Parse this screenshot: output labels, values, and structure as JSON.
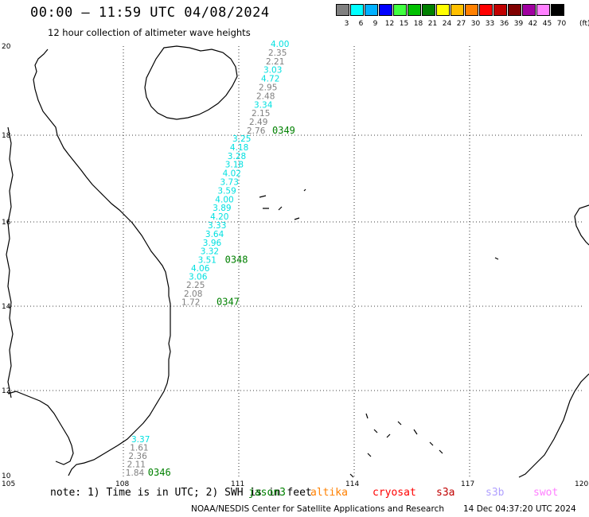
{
  "header": {
    "title": "00:00 – 11:59 UTC 04/08/2024",
    "subtitle": "12 hour collection of altimeter wave heights"
  },
  "legend": {
    "colors": [
      "#808080",
      "#00ffff",
      "#00b0ff",
      "#0000ff",
      "#40ff40",
      "#00c000",
      "#008000",
      "#ffff00",
      "#ffc000",
      "#ff8000",
      "#ff0000",
      "#c00000",
      "#800000",
      "#a000a0",
      "#ff80ff",
      "#000000"
    ],
    "labels": [
      "3",
      "6",
      "9",
      "12",
      "15",
      "18",
      "21",
      "24",
      "27",
      "30",
      "33",
      "36",
      "39",
      "42",
      "45",
      "70"
    ],
    "unit": "(ft)"
  },
  "axes": {
    "lat_labels": [
      "20",
      "18",
      "16",
      "14",
      "12",
      "10"
    ],
    "lon_labels": [
      "105",
      "108",
      "111",
      "114",
      "117",
      "120"
    ]
  },
  "tracks": [
    {
      "pass_label": "0349",
      "points": [
        {
          "v": "4.00",
          "c": "#00e0e0"
        },
        {
          "v": "2.35",
          "c": "#808080"
        },
        {
          "v": "2.21",
          "c": "#808080"
        },
        {
          "v": "3.03",
          "c": "#00e0e0"
        },
        {
          "v": "4.72",
          "c": "#00e0e0"
        },
        {
          "v": "2.95",
          "c": "#808080"
        },
        {
          "v": "2.48",
          "c": "#808080"
        },
        {
          "v": "3.34",
          "c": "#00e0e0"
        },
        {
          "v": "2.15",
          "c": "#808080"
        },
        {
          "v": "2.49",
          "c": "#808080"
        },
        {
          "v": "2.76",
          "c": "#808080"
        }
      ]
    },
    {
      "pass_label": "0348",
      "points": [
        {
          "v": "3.25",
          "c": "#00e0e0"
        },
        {
          "v": "4.18",
          "c": "#00e0e0"
        },
        {
          "v": "3.28",
          "c": "#00e0e0"
        },
        {
          "v": "3.18",
          "c": "#00e0e0"
        },
        {
          "v": "4.02",
          "c": "#00e0e0"
        },
        {
          "v": "3.73",
          "c": "#00e0e0"
        },
        {
          "v": "3.59",
          "c": "#00e0e0"
        },
        {
          "v": "4.00",
          "c": "#00e0e0"
        },
        {
          "v": "3.89",
          "c": "#00e0e0"
        },
        {
          "v": "4.20",
          "c": "#00e0e0"
        },
        {
          "v": "3.33",
          "c": "#00e0e0"
        },
        {
          "v": "3.64",
          "c": "#00e0e0"
        },
        {
          "v": "3.96",
          "c": "#00e0e0"
        },
        {
          "v": "3.32",
          "c": "#00e0e0"
        },
        {
          "v": "3.51",
          "c": "#00e0e0"
        }
      ]
    },
    {
      "pass_label": "0347",
      "points": [
        {
          "v": "4.06",
          "c": "#00e0e0"
        },
        {
          "v": "3.06",
          "c": "#00e0e0"
        },
        {
          "v": "2.25",
          "c": "#808080"
        },
        {
          "v": "2.08",
          "c": "#808080"
        },
        {
          "v": "1.72",
          "c": "#808080"
        }
      ]
    },
    {
      "pass_label": "0346",
      "points": [
        {
          "v": "3.37",
          "c": "#00e0e0"
        },
        {
          "v": "1.61",
          "c": "#808080"
        },
        {
          "v": "2.36",
          "c": "#808080"
        },
        {
          "v": "2.11",
          "c": "#808080"
        },
        {
          "v": "1.84",
          "c": "#808080"
        }
      ]
    }
  ],
  "pass_label_color": "#008000",
  "note": "note: 1) Time is in UTC; 2) SWH is in feet",
  "satellites": [
    {
      "name": "jason3",
      "color": "#008000"
    },
    {
      "name": "altika",
      "color": "#ff8000"
    },
    {
      "name": "cryosat",
      "color": "#ff0000"
    },
    {
      "name": "s3a",
      "color": "#c00000"
    },
    {
      "name": "s3b",
      "color": "#b0a0ff"
    },
    {
      "name": "swot",
      "color": "#ff80ff"
    }
  ],
  "footer": {
    "credit": "NOAA/NESDIS Center for Satellite Applications and Research",
    "timestamp": "14 Dec 04:37:20 UTC 2024"
  }
}
